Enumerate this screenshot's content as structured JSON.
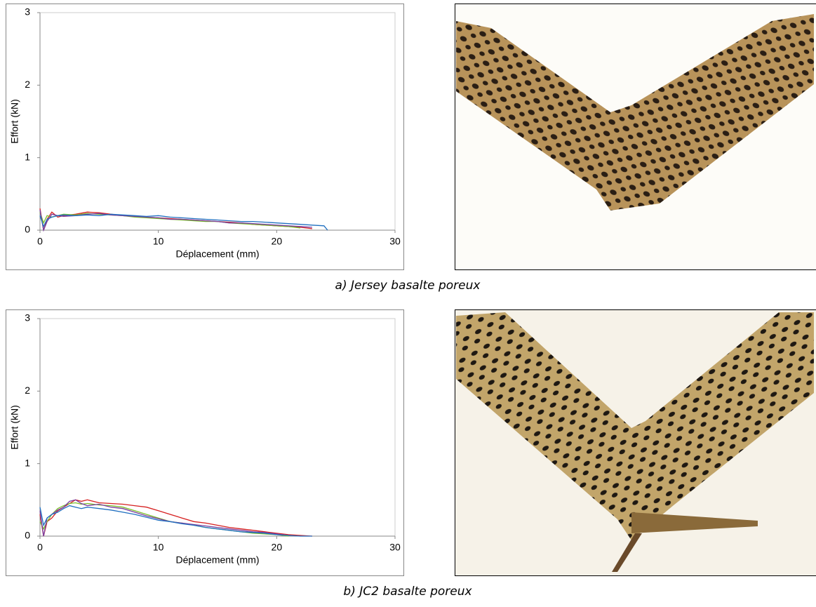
{
  "chart_data": [
    {
      "type": "line",
      "x_label": "Déplacement (mm)",
      "y_label": "Effort (kN)",
      "caption": "a) Jersey basalte poreux",
      "x": [
        0,
        0.3,
        0.6,
        1,
        1.5,
        2,
        3,
        4,
        5,
        6,
        7,
        8,
        9,
        10,
        11,
        12,
        13,
        14,
        15,
        16,
        17,
        18,
        19,
        20,
        21,
        22,
        23,
        24,
        24.3
      ],
      "xlim": [
        0,
        30
      ],
      "xticks": [
        0,
        10,
        20,
        30
      ],
      "ylim": [
        0,
        3
      ],
      "yticks": [
        0,
        1,
        2,
        3
      ],
      "grid": false,
      "series": [
        {
          "color": "#d62020",
          "values": [
            0.3,
            0,
            0.15,
            0.25,
            0.18,
            0.2,
            0.22,
            0.25,
            0.24,
            0.22,
            0.2,
            0.19,
            0.18,
            0.17,
            0.16,
            0.15,
            0.14,
            0.13,
            0.12,
            0.11,
            0.1,
            0.08,
            0.07,
            0.06,
            0.05,
            0.04,
            0.02,
            null,
            null
          ]
        },
        {
          "color": "#7cbf2a",
          "values": [
            0.25,
            0.1,
            0.2,
            0.18,
            0.2,
            0.22,
            0.21,
            0.23,
            0.22,
            0.21,
            0.2,
            0.18,
            0.17,
            0.16,
            0.15,
            0.14,
            0.13,
            0.12,
            0.12,
            0.1,
            0.09,
            0.08,
            0.07,
            0.06,
            0.05,
            0.03,
            null,
            null,
            null
          ]
        },
        {
          "color": "#7a3fa0",
          "values": [
            0.28,
            0,
            0.12,
            0.22,
            0.2,
            0.19,
            0.2,
            0.22,
            0.23,
            0.21,
            0.2,
            0.19,
            0.18,
            0.17,
            0.15,
            0.15,
            0.14,
            0.13,
            0.12,
            0.1,
            0.1,
            0.09,
            0.08,
            0.07,
            0.06,
            0.05,
            0.04,
            null,
            null
          ]
        },
        {
          "color": "#1f6fc0",
          "values": [
            0.2,
            0.05,
            0.15,
            0.18,
            0.2,
            0.21,
            0.2,
            0.21,
            0.2,
            0.22,
            0.21,
            0.2,
            0.19,
            0.2,
            0.18,
            0.17,
            0.16,
            0.15,
            0.14,
            0.13,
            0.12,
            0.12,
            0.11,
            0.1,
            0.09,
            0.08,
            0.07,
            0.06,
            0
          ]
        }
      ]
    },
    {
      "type": "line",
      "x_label": "Déplacement (mm)",
      "y_label": "Effort (kN)",
      "caption": "b) JC2 basalte poreux",
      "x": [
        0,
        0.3,
        0.6,
        1,
        1.5,
        2,
        2.5,
        3,
        3.5,
        4,
        5,
        6,
        7,
        8,
        9,
        10,
        11,
        12,
        13,
        14,
        15,
        16,
        17,
        18,
        19,
        20,
        21,
        22,
        23
      ],
      "xlim": [
        0,
        30
      ],
      "xticks": [
        0,
        10,
        20,
        30
      ],
      "ylim": [
        0,
        3
      ],
      "yticks": [
        0,
        1,
        2,
        3
      ],
      "grid": false,
      "series": [
        {
          "color": "#d62020",
          "values": [
            0.3,
            0,
            0.2,
            0.25,
            0.35,
            0.4,
            0.45,
            0.5,
            0.48,
            0.5,
            0.46,
            0.45,
            0.44,
            0.42,
            0.4,
            0.35,
            0.3,
            0.25,
            0.2,
            0.18,
            0.15,
            0.12,
            0.1,
            0.08,
            0.06,
            0.04,
            0.02,
            0.01,
            0
          ]
        },
        {
          "color": "#7cbf2a",
          "values": [
            0.2,
            0.1,
            0.2,
            0.3,
            0.38,
            0.42,
            0.45,
            0.46,
            0.44,
            0.45,
            0.43,
            0.42,
            0.4,
            0.35,
            0.3,
            0.25,
            0.2,
            0.18,
            0.15,
            0.12,
            0.1,
            0.08,
            0.06,
            0.04,
            0.03,
            0.02,
            0,
            null,
            null
          ]
        },
        {
          "color": "#7a3fa0",
          "values": [
            0.35,
            0,
            0.25,
            0.3,
            0.36,
            0.4,
            0.48,
            0.5,
            0.45,
            0.42,
            0.44,
            0.4,
            0.38,
            0.33,
            0.28,
            0.24,
            0.2,
            0.18,
            0.16,
            0.14,
            0.12,
            0.1,
            0.08,
            0.06,
            0.05,
            0.03,
            0.01,
            null,
            null
          ]
        },
        {
          "color": "#1f6fc0",
          "values": [
            0.4,
            0.15,
            0.25,
            0.3,
            0.33,
            0.38,
            0.42,
            0.4,
            0.38,
            0.4,
            0.38,
            0.36,
            0.33,
            0.3,
            0.26,
            0.22,
            0.2,
            0.17,
            0.15,
            0.12,
            0.1,
            0.08,
            0.06,
            0.05,
            0.04,
            0.02,
            0.01,
            0,
            0
          ]
        }
      ]
    }
  ]
}
